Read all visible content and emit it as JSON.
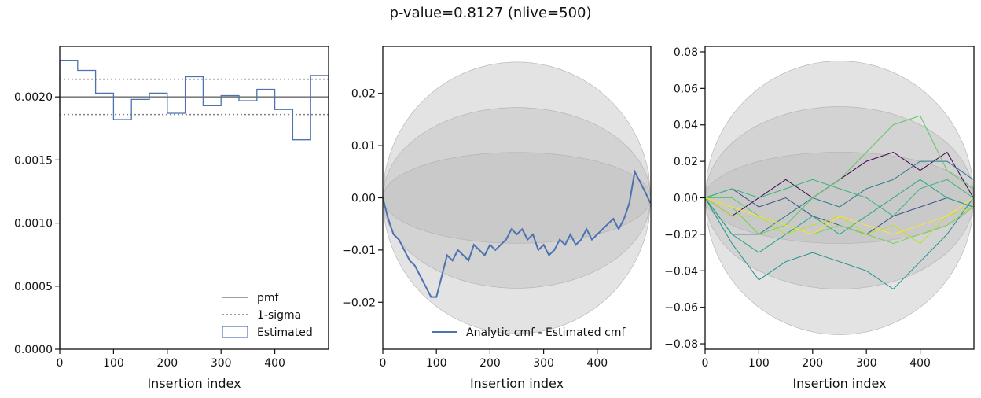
{
  "suptitle": "p-value=0.8127 (nlive=500)",
  "colors": {
    "pmf": "#7f7f7f",
    "sigma": "#7f7f7f",
    "estimated": "#4c72b0",
    "band": "#bdbdbd",
    "axis": "#111111",
    "viridis": [
      "#440154",
      "#3b528b",
      "#21918c",
      "#2a788e",
      "#5ec962",
      "#22a884",
      "#7ad151",
      "#bddf26",
      "#fde725",
      "#35b779"
    ]
  },
  "chart_data": [
    {
      "type": "histogram",
      "title": "",
      "xlabel": "Insertion index",
      "ylabel": "",
      "xlim": [
        0,
        500
      ],
      "ylim": [
        0,
        0.0024
      ],
      "xticks": [
        0,
        100,
        200,
        300,
        400
      ],
      "yticks": [
        0.0,
        0.0005,
        0.001,
        0.0015,
        0.002
      ],
      "ytick_labels": [
        "0.0000",
        "0.0005",
        "0.0010",
        "0.0015",
        "0.0020"
      ],
      "pmf": 0.002,
      "sigma_lines": [
        0.00214,
        0.00186
      ],
      "bin_edges": [
        0,
        33.33,
        66.67,
        100,
        133.33,
        166.67,
        200,
        233.33,
        266.67,
        300,
        333.33,
        366.67,
        400,
        433.33,
        466.67,
        500
      ],
      "values": [
        0.00229,
        0.00221,
        0.00203,
        0.00182,
        0.00198,
        0.00203,
        0.00187,
        0.00216,
        0.00193,
        0.00201,
        0.00197,
        0.00206,
        0.0019,
        0.00166,
        0.00217
      ],
      "legend": [
        "pmf",
        "1-sigma",
        "Estimated"
      ],
      "legend_position": "lower right"
    },
    {
      "type": "line",
      "title": "",
      "xlabel": "Insertion index",
      "ylabel": "",
      "xlim": [
        0,
        500
      ],
      "ylim": [
        -0.029,
        0.029
      ],
      "xticks": [
        0,
        100,
        200,
        300,
        400
      ],
      "yticks": [
        -0.02,
        -0.01,
        0.0,
        0.01,
        0.02
      ],
      "ytick_labels": [
        "−0.02",
        "−0.01",
        "0.00",
        "0.01",
        "0.02"
      ],
      "bands_peak": [
        0.0087,
        0.0173,
        0.026
      ],
      "series": [
        {
          "name": "Analytic cmf - Estimated cmf",
          "x": [
            0,
            10,
            20,
            30,
            40,
            50,
            60,
            70,
            80,
            90,
            100,
            110,
            120,
            130,
            140,
            150,
            160,
            170,
            180,
            190,
            200,
            210,
            220,
            230,
            240,
            250,
            260,
            270,
            280,
            290,
            300,
            310,
            320,
            330,
            340,
            350,
            360,
            370,
            380,
            390,
            400,
            410,
            420,
            430,
            440,
            450,
            460,
            470,
            480,
            490,
            499
          ],
          "y": [
            0.0,
            -0.004,
            -0.007,
            -0.008,
            -0.01,
            -0.012,
            -0.013,
            -0.015,
            -0.017,
            -0.019,
            -0.019,
            -0.015,
            -0.011,
            -0.012,
            -0.01,
            -0.011,
            -0.012,
            -0.009,
            -0.01,
            -0.011,
            -0.009,
            -0.01,
            -0.009,
            -0.008,
            -0.006,
            -0.007,
            -0.006,
            -0.008,
            -0.007,
            -0.01,
            -0.009,
            -0.011,
            -0.01,
            -0.008,
            -0.009,
            -0.007,
            -0.009,
            -0.008,
            -0.006,
            -0.008,
            -0.007,
            -0.006,
            -0.005,
            -0.004,
            -0.006,
            -0.004,
            -0.001,
            0.005,
            0.003,
            0.001,
            -0.001
          ]
        }
      ],
      "legend": [
        "Analytic cmf - Estimated cmf"
      ],
      "legend_position": "lower right"
    },
    {
      "type": "line",
      "title": "",
      "xlabel": "Insertion index",
      "ylabel": "",
      "xlim": [
        0,
        500
      ],
      "ylim": [
        -0.083,
        0.083
      ],
      "xticks": [
        0,
        100,
        200,
        300,
        400
      ],
      "yticks": [
        -0.08,
        -0.06,
        -0.04,
        -0.02,
        0.0,
        0.02,
        0.04,
        0.06,
        0.08
      ],
      "ytick_labels": [
        "−0.08",
        "−0.06",
        "−0.04",
        "−0.02",
        "0.00",
        "0.02",
        "0.04",
        "0.06",
        "0.08"
      ],
      "bands_peak": [
        0.025,
        0.05,
        0.075
      ],
      "x": [
        0,
        50,
        100,
        150,
        200,
        250,
        300,
        350,
        400,
        450,
        499
      ],
      "series": [
        {
          "y": [
            0.0,
            -0.01,
            0.0,
            0.01,
            0.0,
            0.01,
            0.02,
            0.025,
            0.015,
            0.025,
            0.0
          ]
        },
        {
          "y": [
            0.0,
            0.005,
            -0.005,
            0.0,
            -0.01,
            -0.015,
            -0.02,
            -0.01,
            -0.005,
            0.0,
            -0.005
          ]
        },
        {
          "y": [
            0.0,
            -0.025,
            -0.045,
            -0.035,
            -0.03,
            -0.035,
            -0.04,
            -0.05,
            -0.035,
            -0.02,
            0.0
          ]
        },
        {
          "y": [
            0.0,
            -0.02,
            -0.02,
            -0.01,
            0.0,
            -0.005,
            0.005,
            0.01,
            0.02,
            0.02,
            0.01
          ]
        },
        {
          "y": [
            0.0,
            0.0,
            -0.01,
            -0.015,
            0.0,
            0.01,
            0.025,
            0.04,
            0.045,
            0.015,
            0.005
          ]
        },
        {
          "y": [
            0.0,
            -0.02,
            -0.03,
            -0.02,
            -0.01,
            -0.02,
            -0.01,
            0.0,
            0.01,
            0.0,
            -0.005
          ]
        },
        {
          "y": [
            0.0,
            -0.005,
            -0.02,
            -0.015,
            -0.02,
            -0.015,
            -0.02,
            -0.025,
            -0.02,
            -0.015,
            -0.005
          ]
        },
        {
          "y": [
            0.0,
            -0.01,
            -0.01,
            -0.02,
            -0.015,
            -0.01,
            -0.02,
            -0.015,
            -0.025,
            -0.01,
            -0.005
          ]
        },
        {
          "y": [
            0.0,
            -0.005,
            -0.01,
            -0.015,
            -0.02,
            -0.01,
            -0.015,
            -0.02,
            -0.015,
            -0.01,
            0.0
          ]
        },
        {
          "y": [
            0.0,
            0.005,
            0.0,
            0.005,
            0.01,
            0.005,
            0.0,
            -0.01,
            0.005,
            0.01,
            0.0
          ]
        }
      ]
    }
  ]
}
